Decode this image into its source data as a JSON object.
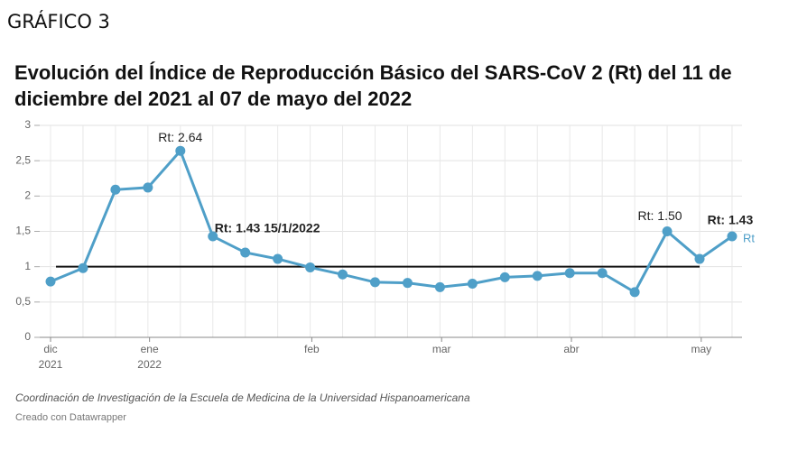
{
  "header": "GRÁFICO 3",
  "chart_data": {
    "type": "line",
    "title": "Evolución del Índice de Reproducción Básico del SARS-CoV 2 (Rt) del  11 de diciembre del 2021 al 07 de mayo del 2022",
    "categories": [
      null,
      null,
      null,
      null,
      null,
      null,
      null,
      null,
      null,
      null,
      null,
      null,
      null,
      null,
      null,
      null,
      null,
      null,
      null,
      null,
      null,
      null
    ],
    "series": [
      {
        "name": "Rt",
        "color": "#4f9fc8",
        "values": [
          0.79,
          0.98,
          2.09,
          2.12,
          2.64,
          1.43,
          1.2,
          1.11,
          0.99,
          0.89,
          0.78,
          0.77,
          0.71,
          0.76,
          0.85,
          0.87,
          0.91,
          0.91,
          0.64,
          1.5,
          1.11,
          1.43
        ]
      }
    ],
    "ylim": [
      0,
      3
    ],
    "yticks": [
      0,
      {
        "value": 0.5,
        "label": "0,5"
      },
      1,
      {
        "value": 1.5,
        "label": "1,5"
      },
      2,
      {
        "value": 2.5,
        "label": "2,5"
      },
      3
    ],
    "xticks": [
      {
        "value": 0,
        "label": "dic\n2021"
      },
      {
        "value": 3.05,
        "label": "ene\n2022"
      },
      {
        "value": 8.05,
        "label": "feb"
      },
      {
        "value": 12.05,
        "label": "mar"
      },
      {
        "value": 16.05,
        "label": "abr"
      },
      {
        "value": 20.05,
        "label": "may"
      }
    ],
    "reference_line": 1,
    "annotations": [
      "Rt: 2.64",
      "Rt: 1.43  15/1/2022",
      "Rt: 1.50",
      "Rt: 1.43"
    ],
    "grid": true,
    "source": "Coordinación de Investigación de la Escuela de Medicina de la Universidad Hispanoamericana",
    "credit": "Creado con Datawrapper"
  }
}
